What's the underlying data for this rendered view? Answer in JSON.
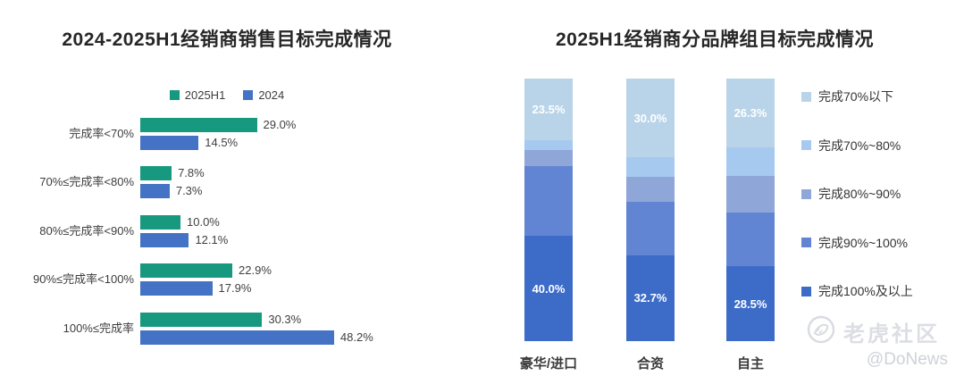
{
  "chart_data": [
    {
      "type": "bar",
      "orientation": "horizontal",
      "title": "2024-2025H1经销商销售目标完成情况",
      "categories": [
        "完成率<70%",
        "70%≤完成率<80%",
        "80%≤完成率<90%",
        "90%≤完成率<100%",
        "100%≤完成率"
      ],
      "series": [
        {
          "name": "2025H1",
          "color": "#17997f",
          "values": [
            29.0,
            7.8,
            10.0,
            22.9,
            30.3
          ]
        },
        {
          "name": "2024",
          "color": "#4472c4",
          "values": [
            14.5,
            7.3,
            12.1,
            17.9,
            48.2
          ]
        }
      ],
      "value_label_format": "0.0%",
      "xlim": [
        0,
        50
      ],
      "grid": false,
      "legend_position": "top"
    },
    {
      "type": "bar",
      "stacked": true,
      "title": "2025H1经销商分品牌组目标完成情况",
      "categories": [
        "豪华/进口",
        "合资",
        "自主"
      ],
      "series": [
        {
          "name": "完成70%以下",
          "color": "#b9d4e8",
          "values": [
            23.5,
            30.0,
            26.3
          ],
          "labels_visible": true
        },
        {
          "name": "完成70%~80%",
          "color": "#a6c9ef",
          "values": [
            3.7,
            7.4,
            10.9
          ],
          "labels_visible": false
        },
        {
          "name": "完成80%~90%",
          "color": "#8fa6d8",
          "values": [
            6.1,
            9.4,
            13.7
          ],
          "labels_visible": false
        },
        {
          "name": "完成90%~100%",
          "color": "#6285d3",
          "values": [
            26.7,
            20.5,
            20.6
          ],
          "labels_visible": false
        },
        {
          "name": "完成100%及以上",
          "color": "#3d6cc8",
          "values": [
            40.0,
            32.7,
            28.5
          ],
          "labels_visible": true
        }
      ],
      "ylim": [
        0,
        100
      ],
      "grid": false,
      "legend_position": "right"
    }
  ],
  "watermark": {
    "brand": "老虎社区",
    "handle": "@DoNews"
  }
}
